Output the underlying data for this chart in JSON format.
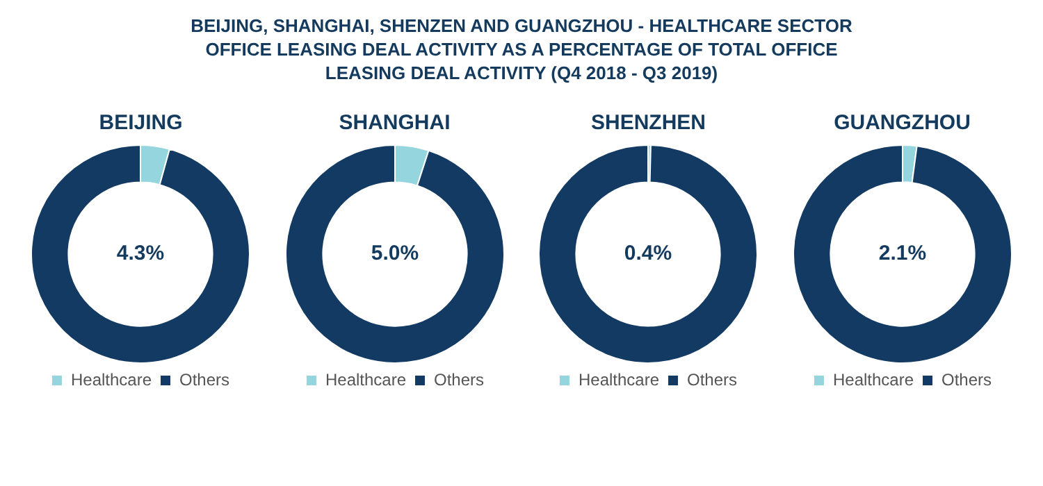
{
  "chart_data": [
    {
      "type": "donut",
      "title": "BEIJING",
      "categories": [
        "Healthcare",
        "Others"
      ],
      "values": [
        4.3,
        95.7
      ],
      "colors": [
        "#94d5de",
        "#123a63"
      ],
      "value_labels": [
        "4.3%",
        null
      ],
      "legend": "bottom",
      "annotations": [
        "BEIJING, SHANGHAI, SHENZEN AND GUANGZHOU - HEALTHCARE SECTOR OFFICE LEASING DEAL ACTIVITY AS A PERCENTAGE OF TOTAL OFFICE LEASING DEAL ACTIVITY (Q4 2018 - Q3 2019)"
      ]
    },
    {
      "type": "donut",
      "title": "SHANGHAI",
      "categories": [
        "Healthcare",
        "Others"
      ],
      "values": [
        5.0,
        95.0
      ],
      "colors": [
        "#94d5de",
        "#123a63"
      ],
      "value_labels": [
        "5.0%",
        null
      ],
      "legend": "bottom"
    },
    {
      "type": "donut",
      "title": "SHENZHEN",
      "categories": [
        "Healthcare",
        "Others"
      ],
      "values": [
        0.4,
        99.6
      ],
      "colors": [
        "#94d5de",
        "#123a63"
      ],
      "value_labels": [
        "0.4%",
        null
      ],
      "legend": "bottom"
    },
    {
      "type": "donut",
      "title": "GUANGZHOU",
      "categories": [
        "Healthcare",
        "Others"
      ],
      "values": [
        2.1,
        97.9
      ],
      "colors": [
        "#94d5de",
        "#123a63"
      ],
      "value_labels": [
        "2.1%",
        null
      ],
      "legend": "bottom"
    }
  ]
}
